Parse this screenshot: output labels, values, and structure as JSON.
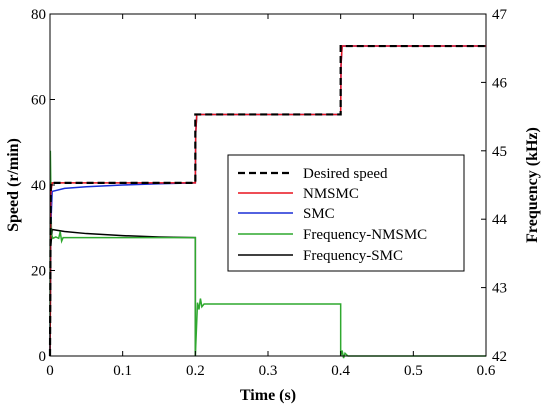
{
  "chart_data": {
    "type": "line",
    "xlabel": "Time (s)",
    "ylabel_left": "Speed (r/min)",
    "ylabel_right": "Frequency (kHz)",
    "xlim": [
      0,
      0.6
    ],
    "ylim_left": [
      0,
      80
    ],
    "ylim_right": [
      42,
      47
    ],
    "xticks": [
      "0",
      "0.1",
      "0.2",
      "0.3",
      "0.4",
      "0.5",
      "0.6"
    ],
    "yticks_left": [
      "0",
      "20",
      "40",
      "60",
      "80"
    ],
    "yticks_right": [
      "42",
      "43",
      "44",
      "45",
      "46",
      "47"
    ],
    "grid": false,
    "legend_placement": "center-right",
    "colors": {
      "desired": "#000000",
      "nmsmc": "#e8141e",
      "smc": "#1a2fd6",
      "freq_nmsmc": "#2fa82f",
      "freq_smc": "#000000"
    },
    "series": [
      {
        "name": "Desired speed",
        "axis": "left",
        "style": "dashed",
        "x": [
          0,
          0.001,
          0.2,
          0.2,
          0.4,
          0.4,
          0.6
        ],
        "y": [
          0,
          40.5,
          40.5,
          56.5,
          56.5,
          72.5,
          72.5
        ]
      },
      {
        "name": "NMSMC",
        "axis": "left",
        "style": "solid",
        "x": [
          0,
          0.0005,
          0.001,
          0.003,
          0.2,
          0.2005,
          0.202,
          0.4,
          0.4005,
          0.402,
          0.6
        ],
        "y": [
          0,
          10,
          38,
          40.5,
          40.5,
          52,
          56.5,
          56.5,
          68,
          72.5,
          72.5
        ]
      },
      {
        "name": "SMC",
        "axis": "left",
        "style": "solid",
        "x": [
          0,
          0.001,
          0.003,
          0.02,
          0.05,
          0.1,
          0.15,
          0.2,
          0.2005,
          0.202,
          0.4,
          0.4005,
          0.402,
          0.6
        ],
        "y": [
          0,
          30,
          38.5,
          39.2,
          39.6,
          40.0,
          40.3,
          40.5,
          52,
          56.5,
          56.5,
          68,
          72.5,
          72.5
        ]
      },
      {
        "name": "Frequency-NMSMC",
        "axis": "right",
        "style": "solid",
        "x": [
          0,
          0.0005,
          0.002,
          0.004,
          0.008,
          0.012,
          0.014,
          0.016,
          0.018,
          0.2,
          0.2,
          0.203,
          0.205,
          0.207,
          0.209,
          0.212,
          0.4,
          0.4,
          0.402,
          0.404,
          0.406,
          0.41,
          0.6
        ],
        "y": [
          42,
          45.0,
          43.78,
          43.72,
          43.74,
          43.72,
          43.82,
          43.68,
          43.73,
          43.73,
          42.0,
          42.78,
          42.68,
          42.84,
          42.72,
          42.76,
          42.76,
          42.0,
          42.08,
          41.97,
          42.04,
          42.0,
          42.0
        ]
      },
      {
        "name": "Frequency-SMC",
        "axis": "right",
        "style": "solid",
        "x": [
          0,
          0.001,
          0.003,
          0.02,
          0.05,
          0.1,
          0.15,
          0.2,
          0.2
        ],
        "y": [
          42,
          43.6,
          43.85,
          43.82,
          43.79,
          43.76,
          43.74,
          43.73,
          42.0
        ]
      }
    ]
  }
}
